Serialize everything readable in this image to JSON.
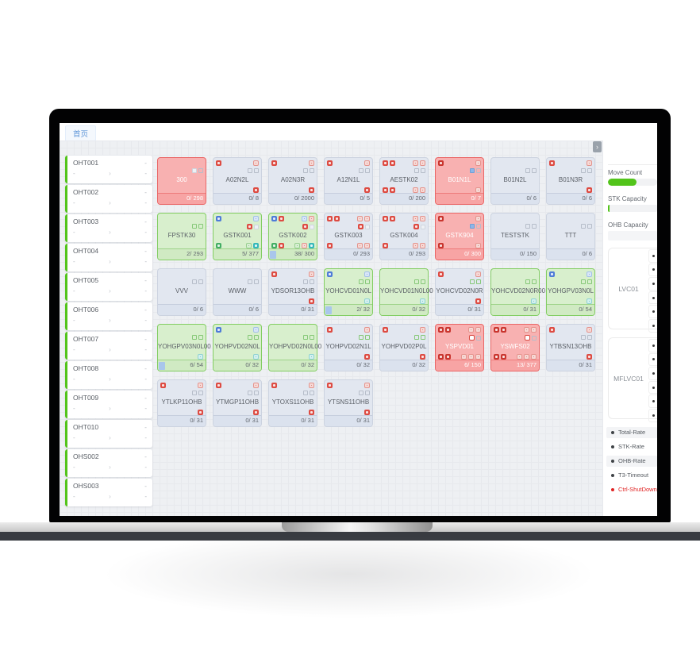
{
  "window": {
    "tab_label": "首页",
    "panel_toggle_glyph": "›"
  },
  "colors": {
    "accent_green": "#52c41a",
    "alarm_red": "#dd4b42",
    "info_blue": "#4e7bd8",
    "card_green_bg": "#d8efcd",
    "card_red_bg": "#f8b1b1",
    "card_grey_bg": "#e2e7f0"
  },
  "vehicles": [
    {
      "name": "OHT001",
      "value_right": "-",
      "value_bottom_left": "-",
      "value_bottom_right": "-"
    },
    {
      "name": "OHT002",
      "value_right": "-",
      "value_bottom_left": "-",
      "value_bottom_right": "-"
    },
    {
      "name": "OHT003",
      "value_right": "-",
      "value_bottom_left": "-",
      "value_bottom_right": "-"
    },
    {
      "name": "OHT004",
      "value_right": "-",
      "value_bottom_left": "-",
      "value_bottom_right": "-"
    },
    {
      "name": "OHT005",
      "value_right": "-",
      "value_bottom_left": "-",
      "value_bottom_right": "-"
    },
    {
      "name": "OHT006",
      "value_right": "-",
      "value_bottom_left": "-",
      "value_bottom_right": "-"
    },
    {
      "name": "OHT007",
      "value_right": "-",
      "value_bottom_left": "-",
      "value_bottom_right": "-"
    },
    {
      "name": "OHT008",
      "value_right": "-",
      "value_bottom_left": "-",
      "value_bottom_right": "-"
    },
    {
      "name": "OHT009",
      "value_right": "-",
      "value_bottom_left": "-",
      "value_bottom_right": "-"
    },
    {
      "name": "OHT010",
      "value_right": "-",
      "value_bottom_left": "-",
      "value_bottom_right": "-"
    },
    {
      "name": "OHS002",
      "value_right": "-",
      "value_bottom_left": "-",
      "value_bottom_right": "-"
    },
    {
      "name": "OHS003",
      "value_right": "-",
      "value_bottom_left": "-",
      "value_bottom_right": "-"
    }
  ],
  "stations": {
    "rows": [
      [
        {
          "title": "300",
          "count": "0/ 298",
          "variant": "red",
          "r2r": [
            "sq-white",
            "sq-grey"
          ]
        },
        {
          "title": "A02N2L",
          "count": "0/ 8",
          "variant": "grey",
          "r1l": [
            "red"
          ],
          "r1r": [
            "red-o"
          ],
          "r2r": [
            "sq-grey",
            "sq-grey"
          ],
          "r3r": [
            "red"
          ]
        },
        {
          "title": "A02N3R",
          "count": "0/ 2000",
          "variant": "grey",
          "r1l": [
            "red"
          ],
          "r1r": [
            "red-o"
          ],
          "r2r": [
            "sq-grey",
            "sq-grey"
          ],
          "r3r": [
            "red"
          ]
        },
        {
          "title": "A12N1L",
          "count": "0/ 5",
          "variant": "grey",
          "r1l": [
            "red"
          ],
          "r1r": [
            "red-o"
          ],
          "r2r": [
            "sq-grey",
            "sq-grey"
          ],
          "r3r": [
            "red"
          ]
        },
        {
          "title": "AESTK02",
          "count": "0/ 200",
          "variant": "grey",
          "r1l": [
            "red",
            "red"
          ],
          "r1r": [
            "red-o",
            "red-o"
          ],
          "r2r": [
            "sq-grey",
            "sq-grey"
          ],
          "r3l": [
            "red",
            "red"
          ],
          "r3r": [
            "red-o",
            "red-o"
          ]
        },
        {
          "title": "B01N1L",
          "count": "0/ 7",
          "variant": "red",
          "r1l": [
            "red-dark"
          ],
          "r1r": [
            "red-o"
          ],
          "r2r": [
            "sq-blue",
            "sq-grey"
          ],
          "r3r": [
            "red-o"
          ]
        },
        {
          "title": "B01N2L",
          "count": "0/ 6",
          "variant": "grey",
          "r2r": [
            "sq-grey",
            "sq-grey"
          ]
        },
        {
          "title": "B01N3R",
          "count": "0/ 6",
          "variant": "grey",
          "r1l": [
            "red"
          ],
          "r1r": [
            "red-o"
          ],
          "r2r": [
            "sq-grey",
            "sq-grey"
          ],
          "r3r": [
            "red"
          ]
        }
      ],
      [
        {
          "title": "FPSTK30",
          "count": "2/ 293",
          "variant": "green",
          "r2r": [
            "sq-green",
            "sq-green"
          ]
        },
        {
          "title": "GSTK001",
          "count": "5/ 377",
          "variant": "green",
          "r1l": [
            "blue"
          ],
          "r1r": [
            "blue-o"
          ],
          "r2r": [
            "red",
            "sq-white"
          ],
          "r3l": [
            "green"
          ],
          "r3r": [
            "green-o",
            "teal"
          ]
        },
        {
          "title": "GSTK002",
          "count": "38/ 300",
          "variant": "green",
          "bar": true,
          "r1l": [
            "blue",
            "red"
          ],
          "r1r": [
            "blue-o",
            "red-o"
          ],
          "r2r": [
            "red",
            "sq-white"
          ],
          "r3l": [
            "green",
            "red"
          ],
          "r3r": [
            "green-o",
            "red-o",
            "teal"
          ]
        },
        {
          "title": "GSTK003",
          "count": "0/ 293",
          "variant": "grey",
          "r1l": [
            "red",
            "red"
          ],
          "r1r": [
            "red-o",
            "red-o"
          ],
          "r2r": [
            "red",
            "sq-white"
          ],
          "r3l": [
            "red"
          ],
          "r3r": [
            "red-o",
            "red-o"
          ]
        },
        {
          "title": "GSTK004",
          "count": "0/ 293",
          "variant": "grey",
          "r1l": [
            "red",
            "red"
          ],
          "r1r": [
            "red-o",
            "red-o"
          ],
          "r2r": [
            "red",
            "sq-white"
          ],
          "r3l": [
            "red"
          ],
          "r3r": [
            "red-o",
            "red-o"
          ]
        },
        {
          "title": "GSTK904",
          "count": "0/ 300",
          "variant": "red",
          "r1l": [
            "red-dark"
          ],
          "r1r": [
            "red-o"
          ],
          "r2r": [
            "sq-blue",
            "sq-grey"
          ],
          "r3l": [
            "red-dark"
          ],
          "r3r": [
            "red-o"
          ]
        },
        {
          "title": "TESTSTK",
          "count": "0/ 150",
          "variant": "grey",
          "r2r": [
            "sq-grey",
            "sq-grey"
          ]
        },
        {
          "title": "TTT",
          "count": "0/ 6",
          "variant": "grey",
          "r2r": [
            "sq-grey",
            "sq-grey"
          ]
        }
      ],
      [
        {
          "title": "VVV",
          "count": "0/ 6",
          "variant": "grey",
          "r2r": [
            "sq-grey",
            "sq-grey"
          ]
        },
        {
          "title": "WWW",
          "count": "0/ 6",
          "variant": "grey",
          "r2r": [
            "sq-grey",
            "sq-grey"
          ]
        },
        {
          "title": "YDSOR13OHB",
          "count": "0/ 31",
          "variant": "grey",
          "r1l": [
            "red"
          ],
          "r1r": [
            "red-o"
          ],
          "r2r": [
            "sq-grey",
            "sq-grey"
          ],
          "r3r": [
            "red"
          ]
        },
        {
          "title": "YOHCVD01N0L",
          "count": "2/ 32",
          "variant": "green",
          "bar": true,
          "r1l": [
            "blue"
          ],
          "r1r": [
            "blue-o"
          ],
          "r2r": [
            "sq-green",
            "sq-green"
          ],
          "r3r": [
            "teal-o"
          ]
        },
        {
          "title": "YOHCVD01N0L00",
          "count": "0/ 32",
          "variant": "green",
          "r2r": [
            "sq-green",
            "sq-green"
          ],
          "r3r": [
            "teal-o"
          ]
        },
        {
          "title": "YOHCVD02N0R",
          "count": "0/ 31",
          "variant": "grey",
          "r1l": [
            "red"
          ],
          "r1r": [
            "red-o"
          ],
          "r2r": [
            "sq-green",
            "sq-green"
          ],
          "r3r": [
            "red"
          ]
        },
        {
          "title": "YOHCVD02N0R00",
          "count": "0/ 31",
          "variant": "green",
          "r2r": [
            "sq-green",
            "sq-green"
          ],
          "r3r": [
            "teal-o"
          ]
        },
        {
          "title": "YOHGPV03N0L",
          "count": "0/ 54",
          "variant": "green",
          "r1l": [
            "blue"
          ],
          "r1r": [
            "blue-o"
          ],
          "r2r": [
            "sq-green",
            "sq-green"
          ],
          "r3r": [
            "teal-o"
          ]
        }
      ],
      [
        {
          "title": "YOHGPV03N0L00",
          "count": "6/ 54",
          "variant": "green",
          "bar": true,
          "r2r": [
            "sq-green",
            "sq-green"
          ],
          "r3r": [
            "teal-o"
          ]
        },
        {
          "title": "YOHPVD02N0L",
          "count": "0/ 32",
          "variant": "green",
          "r1l": [
            "blue"
          ],
          "r1r": [
            "blue-o"
          ],
          "r2r": [
            "sq-green",
            "sq-green"
          ],
          "r3r": [
            "teal-o"
          ]
        },
        {
          "title": "YOHPVD02N0L00",
          "count": "0/ 32",
          "variant": "green",
          "r2r": [
            "sq-green",
            "sq-green"
          ],
          "r3r": [
            "teal-o"
          ]
        },
        {
          "title": "YOHPVD02N1L",
          "count": "0/ 32",
          "variant": "grey",
          "r1l": [
            "red"
          ],
          "r1r": [
            "red-o"
          ],
          "r2r": [
            "sq-green",
            "sq-green"
          ],
          "r3r": [
            "red"
          ]
        },
        {
          "title": "YOHPVD02P0L",
          "count": "0/ 32",
          "variant": "grey",
          "r1l": [
            "red"
          ],
          "r1r": [
            "red-o"
          ],
          "r2r": [
            "sq-green",
            "sq-green"
          ],
          "r3r": [
            "red"
          ]
        },
        {
          "title": "YSPVD01",
          "count": "6/ 150",
          "variant": "red",
          "r1l": [
            "red-dark",
            "red-dark"
          ],
          "r1r": [
            "red-o",
            "red-o"
          ],
          "r2r": [
            "red-ow",
            "sq-grey"
          ],
          "r3l": [
            "red-dark",
            "red-dark"
          ],
          "r3r": [
            "red-o",
            "red-o",
            "red-o"
          ]
        },
        {
          "title": "YSWFS02",
          "count": "13/ 377",
          "variant": "red",
          "r1l": [
            "red-dark",
            "red-dark"
          ],
          "r1r": [
            "red-o",
            "red-o"
          ],
          "r2r": [
            "red-ow",
            "sq-grey"
          ],
          "r3l": [
            "red-dark",
            "red-dark"
          ],
          "r3r": [
            "red-o",
            "red-o",
            "red-o"
          ]
        },
        {
          "title": "YTBSN13OHB",
          "count": "0/ 31",
          "variant": "grey",
          "r1l": [
            "red"
          ],
          "r1r": [
            "red-o"
          ],
          "r2r": [
            "sq-grey",
            "sq-grey"
          ],
          "r3r": [
            "red"
          ]
        }
      ],
      [
        {
          "title": "YTLKP11OHB",
          "count": "0/ 31",
          "variant": "grey",
          "r1l": [
            "red"
          ],
          "r1r": [
            "red-o"
          ],
          "r2r": [
            "sq-grey",
            "sq-grey"
          ],
          "r3r": [
            "red"
          ]
        },
        {
          "title": "YTMGP11OHB",
          "count": "0/ 31",
          "variant": "grey",
          "r1l": [
            "red"
          ],
          "r1r": [
            "red-o"
          ],
          "r2r": [
            "sq-grey",
            "sq-grey"
          ],
          "r3r": [
            "red"
          ]
        },
        {
          "title": "YTOXS11OHB",
          "count": "0/ 31",
          "variant": "grey",
          "r1l": [
            "red"
          ],
          "r1r": [
            "red-o"
          ],
          "r2r": [
            "sq-grey",
            "sq-grey"
          ],
          "r3r": [
            "red"
          ]
        },
        {
          "title": "YTSNS11OHB",
          "count": "0/ 31",
          "variant": "grey",
          "r1l": [
            "red"
          ],
          "r1r": [
            "red-o"
          ],
          "r2r": [
            "sq-grey",
            "sq-grey"
          ],
          "r3r": [
            "red"
          ]
        }
      ]
    ]
  },
  "sidebar": {
    "move_count": {
      "label": "Move Count",
      "fill_pct": 58
    },
    "stk_capacity": {
      "label": "STK Capacity",
      "fill_pct": 4
    },
    "ohb_capacity": {
      "label": "OHB Capacity",
      "fill_pct": 0
    },
    "controllers": [
      {
        "name": "LVC01",
        "slots": 6
      },
      {
        "name": "MFLVC01",
        "slots": 6
      }
    ],
    "legend": [
      {
        "label": "Total-Rate",
        "shaded": true,
        "alert": false
      },
      {
        "label": "STK-Rate",
        "shaded": false,
        "alert": false
      },
      {
        "label": "OHB-Rate",
        "shaded": true,
        "alert": false
      },
      {
        "label": "T3-Timeout",
        "shaded": false,
        "alert": false
      },
      {
        "label": "Ctrl-ShutDown",
        "shaded": false,
        "alert": true
      }
    ]
  }
}
